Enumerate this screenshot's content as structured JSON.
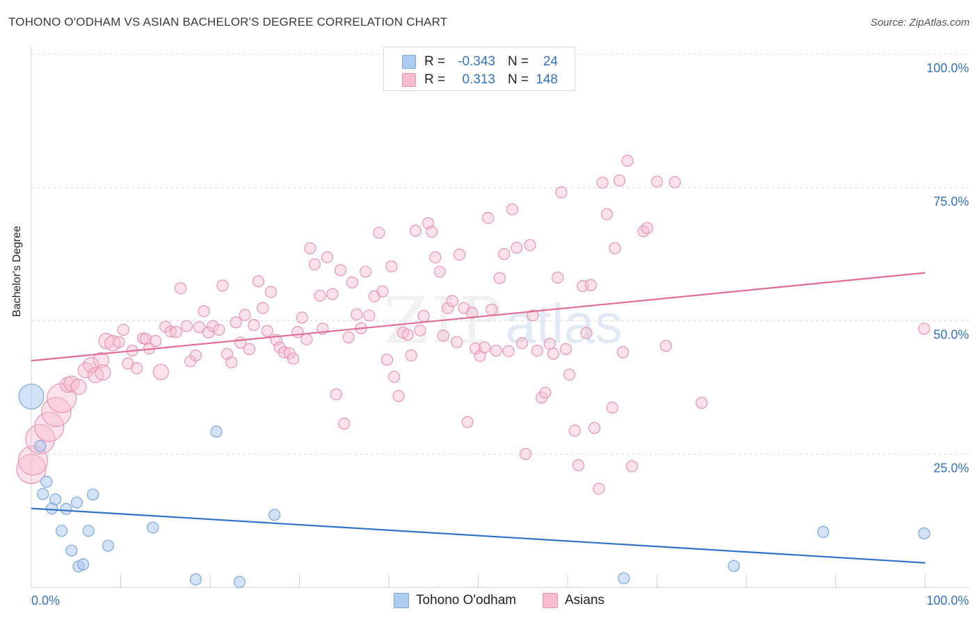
{
  "header": {
    "title": "TOHONO O'ODHAM VS ASIAN BACHELOR'S DEGREE CORRELATION CHART",
    "source": "Source: ZipAtlas.com"
  },
  "watermark": {
    "zip": "ZIP",
    "atlas": "atlas"
  },
  "legend": {
    "rows": [
      {
        "r_label": "R =",
        "r_value": "-0.343",
        "n_label": "N =",
        "n_value": "24",
        "color": "#aecbf0"
      },
      {
        "r_label": "R =",
        "r_value": "0.313",
        "n_label": "N =",
        "n_value": "148",
        "color": "#f7bcce"
      }
    ]
  },
  "bottom_legend": {
    "items": [
      {
        "label": "Tohono O'odham",
        "color": "#aecbf0"
      },
      {
        "label": "Asians",
        "color": "#f7bcce"
      }
    ]
  },
  "chart_data": {
    "type": "scatter",
    "title": "TOHONO O'ODHAM VS ASIAN BACHELOR'S DEGREE CORRELATION CHART",
    "xlabel": "",
    "ylabel": "Bachelor's Degree",
    "xlim": [
      0,
      100
    ],
    "ylim": [
      0,
      100
    ],
    "x_tick_labels": [
      "0.0%",
      "100.0%"
    ],
    "y_tick_labels": [
      "100.0%",
      "75.0%",
      "50.0%",
      "25.0%"
    ],
    "y_ticks": [
      100,
      75,
      50,
      25
    ],
    "grid": true,
    "colors": {
      "tohono": "#3173c6",
      "tohono_fill": "#aecbf0",
      "asians": "#e06c97",
      "asians_fill": "#f7bcce",
      "axis_text": "#3173c6"
    },
    "series": [
      {
        "name": "Tohono O'odham",
        "R": -0.343,
        "N": 24,
        "trend": {
          "x": [
            0,
            100
          ],
          "y": [
            14.8,
            4.6
          ]
        },
        "points": [
          [
            0,
            35.8,
            3
          ],
          [
            1,
            26.5,
            1
          ],
          [
            1.3,
            17.5,
            1
          ],
          [
            1.7,
            19.8,
            1
          ],
          [
            2.3,
            14.8,
            1
          ],
          [
            2.7,
            16.5,
            1
          ],
          [
            3.4,
            10.6,
            1
          ],
          [
            3.9,
            14.7,
            1
          ],
          [
            4.5,
            6.9,
            1
          ],
          [
            5.1,
            15.9,
            1
          ],
          [
            5.3,
            3.9,
            1
          ],
          [
            5.8,
            4.3,
            1
          ],
          [
            6.4,
            10.6,
            1
          ],
          [
            6.9,
            17.4,
            1
          ],
          [
            8.6,
            7.8,
            1
          ],
          [
            13.6,
            11.2,
            1
          ],
          [
            18.4,
            1.5,
            1
          ],
          [
            20.7,
            29.2,
            1
          ],
          [
            23.3,
            1.0,
            1
          ],
          [
            27.2,
            13.6,
            1
          ],
          [
            66.3,
            1.7,
            1
          ],
          [
            78.6,
            4.0,
            1
          ],
          [
            88.6,
            10.4,
            1
          ],
          [
            99.9,
            10.1,
            1
          ]
        ]
      },
      {
        "name": "Asians",
        "R": 0.313,
        "N": 148,
        "trend": {
          "x": [
            0,
            100
          ],
          "y": [
            42.5,
            59.0
          ]
        },
        "points": [
          [
            0,
            22.2,
            3
          ],
          [
            0.2,
            23.8,
            3
          ],
          [
            1,
            27.8,
            3
          ],
          [
            2,
            30.1,
            3
          ],
          [
            2.8,
            32.9,
            3
          ],
          [
            3.4,
            35.5,
            3
          ],
          [
            4.1,
            38.0,
            2
          ],
          [
            4.5,
            38.2,
            2
          ],
          [
            5.3,
            37.6,
            2
          ],
          [
            6.1,
            40.7,
            2
          ],
          [
            6.7,
            41.7,
            2
          ],
          [
            7.2,
            39.8,
            2
          ],
          [
            7.8,
            42.6,
            2
          ],
          [
            8.0,
            40.3,
            2
          ],
          [
            8.4,
            46.2,
            2
          ],
          [
            9.1,
            45.8,
            2
          ],
          [
            9.8,
            46.0,
            1
          ],
          [
            10.3,
            48.3,
            1
          ],
          [
            10.8,
            42.0,
            1
          ],
          [
            11.3,
            44.4,
            1
          ],
          [
            11.8,
            41.1,
            1
          ],
          [
            12.5,
            46.7,
            1
          ],
          [
            12.8,
            46.6,
            1
          ],
          [
            13.2,
            44.8,
            1
          ],
          [
            13.9,
            46.2,
            1
          ],
          [
            14.5,
            40.4,
            2
          ],
          [
            15.0,
            48.9,
            1
          ],
          [
            15.6,
            48.0,
            1
          ],
          [
            16.2,
            47.9,
            1
          ],
          [
            16.7,
            56.1,
            1
          ],
          [
            17.4,
            49.0,
            1
          ],
          [
            17.8,
            42.4,
            1
          ],
          [
            18.4,
            43.5,
            1
          ],
          [
            18.8,
            48.8,
            1
          ],
          [
            19.3,
            51.8,
            1
          ],
          [
            19.8,
            47.8,
            1
          ],
          [
            20.3,
            49.0,
            1
          ],
          [
            21.0,
            48.3,
            1
          ],
          [
            21.4,
            56.6,
            1
          ],
          [
            21.9,
            43.8,
            1
          ],
          [
            22.4,
            42.2,
            1
          ],
          [
            22.9,
            49.7,
            1
          ],
          [
            23.4,
            45.9,
            1
          ],
          [
            23.9,
            51.1,
            1
          ],
          [
            24.4,
            44.7,
            1
          ],
          [
            24.9,
            49.2,
            1
          ],
          [
            25.4,
            57.4,
            1
          ],
          [
            25.9,
            52.4,
            1
          ],
          [
            26.4,
            48.1,
            1
          ],
          [
            26.8,
            55.4,
            1
          ],
          [
            27.4,
            46.4,
            1
          ],
          [
            27.8,
            45.0,
            1
          ],
          [
            28.3,
            44.1,
            1
          ],
          [
            28.9,
            43.9,
            1
          ],
          [
            29.3,
            42.9,
            1
          ],
          [
            29.8,
            47.9,
            1
          ],
          [
            30.3,
            50.6,
            1
          ],
          [
            30.8,
            46.5,
            1
          ],
          [
            31.2,
            63.6,
            1
          ],
          [
            31.7,
            60.6,
            1
          ],
          [
            32.3,
            54.7,
            1
          ],
          [
            32.6,
            48.5,
            1
          ],
          [
            33.1,
            61.9,
            1
          ],
          [
            33.7,
            55.0,
            1
          ],
          [
            34.1,
            36.2,
            1
          ],
          [
            34.6,
            59.5,
            1
          ],
          [
            35.0,
            30.7,
            1
          ],
          [
            35.5,
            46.9,
            1
          ],
          [
            35.9,
            57.2,
            1
          ],
          [
            36.4,
            51.2,
            1
          ],
          [
            36.9,
            48.6,
            1
          ],
          [
            37.4,
            59.2,
            1
          ],
          [
            37.8,
            51.0,
            1
          ],
          [
            38.4,
            54.6,
            1
          ],
          [
            38.9,
            66.5,
            1
          ],
          [
            39.3,
            55.5,
            1
          ],
          [
            39.8,
            42.7,
            1
          ],
          [
            40.3,
            60.2,
            1
          ],
          [
            40.6,
            39.5,
            1
          ],
          [
            41.1,
            35.9,
            1
          ],
          [
            41.6,
            47.8,
            1
          ],
          [
            42.1,
            47.4,
            1
          ],
          [
            42.5,
            43.5,
            1
          ],
          [
            43.0,
            66.9,
            1
          ],
          [
            43.5,
            48.2,
            1
          ],
          [
            43.9,
            50.9,
            1
          ],
          [
            44.4,
            68.3,
            1
          ],
          [
            44.8,
            66.7,
            1
          ],
          [
            45.2,
            61.9,
            1
          ],
          [
            45.7,
            59.2,
            1
          ],
          [
            46.1,
            47.2,
            1
          ],
          [
            46.6,
            52.4,
            1
          ],
          [
            47.1,
            53.7,
            1
          ],
          [
            47.6,
            46.0,
            1
          ],
          [
            47.9,
            62.4,
            1
          ],
          [
            48.4,
            52.4,
            1
          ],
          [
            48.8,
            31.0,
            1
          ],
          [
            49.3,
            51.5,
            1
          ],
          [
            49.7,
            44.8,
            1
          ],
          [
            50.2,
            43.4,
            1
          ],
          [
            50.7,
            45.0,
            1
          ],
          [
            51.1,
            69.3,
            1
          ],
          [
            51.5,
            52.1,
            1
          ],
          [
            52.0,
            44.4,
            1
          ],
          [
            52.4,
            58.0,
            1
          ],
          [
            52.9,
            62.5,
            1
          ],
          [
            53.4,
            44.3,
            1
          ],
          [
            53.8,
            70.9,
            1
          ],
          [
            54.3,
            63.7,
            1
          ],
          [
            54.9,
            45.8,
            1
          ],
          [
            55.3,
            25.0,
            1
          ],
          [
            55.8,
            64.2,
            1
          ],
          [
            56.1,
            51.0,
            1
          ],
          [
            56.6,
            44.4,
            1
          ],
          [
            57.1,
            35.6,
            1
          ],
          [
            57.5,
            36.5,
            1
          ],
          [
            58.0,
            45.7,
            1
          ],
          [
            58.4,
            43.8,
            1
          ],
          [
            58.9,
            58.1,
            1
          ],
          [
            59.3,
            74.1,
            1
          ],
          [
            59.8,
            44.7,
            1
          ],
          [
            60.2,
            39.9,
            1
          ],
          [
            60.8,
            29.4,
            1
          ],
          [
            61.2,
            22.9,
            1
          ],
          [
            61.7,
            56.5,
            1
          ],
          [
            62.1,
            47.7,
            1
          ],
          [
            62.6,
            56.7,
            1
          ],
          [
            63.0,
            29.9,
            1
          ],
          [
            63.5,
            18.5,
            1
          ],
          [
            63.9,
            75.9,
            1
          ],
          [
            64.4,
            70.0,
            1
          ],
          [
            65.0,
            33.7,
            1
          ],
          [
            65.3,
            63.6,
            1
          ],
          [
            65.8,
            76.3,
            1
          ],
          [
            66.2,
            44.1,
            1
          ],
          [
            66.7,
            80.0,
            1
          ],
          [
            67.2,
            22.7,
            1
          ],
          [
            68.5,
            66.8,
            1
          ],
          [
            68.9,
            67.4,
            1
          ],
          [
            70.0,
            76.1,
            1
          ],
          [
            71.0,
            45.3,
            1
          ],
          [
            72.0,
            76.0,
            1
          ],
          [
            75.0,
            34.6,
            1
          ],
          [
            99.9,
            48.5,
            1
          ]
        ]
      }
    ]
  }
}
